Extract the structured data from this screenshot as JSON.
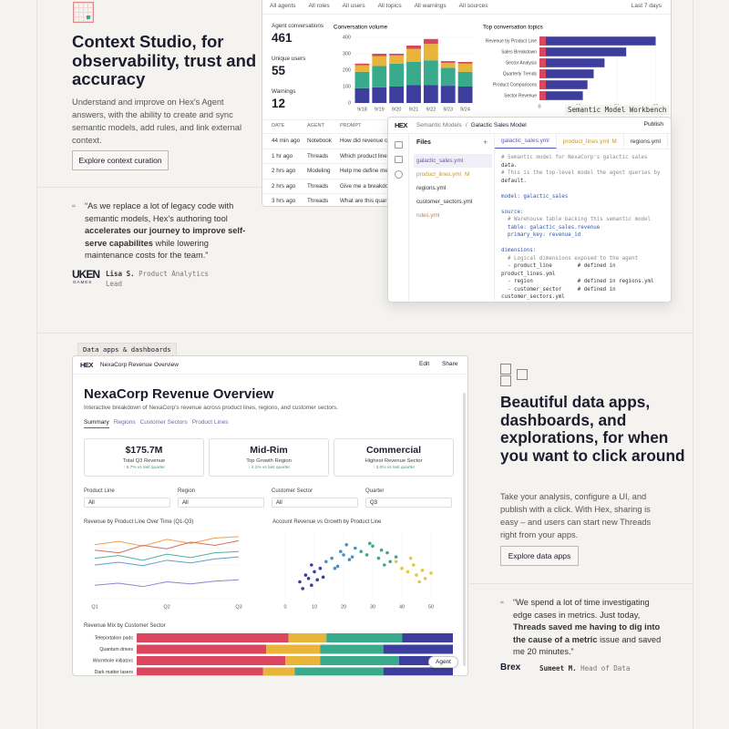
{
  "section1": {
    "title": "Context Studio, for observability, trust and accuracy",
    "body": "Understand and improve on Hex's Agent answers, with the ability to create and sync semantic models, add rules, and link external context.",
    "button": "Explore context curation",
    "quote_pre": "“As we replace a lot of legacy code with semantic models, Hex's authoring tool ",
    "quote_bold": "accelerates our journey to improve self-serve capabilites",
    "quote_post": " while lowering maintenance costs for the team.”",
    "logo": "UKEN",
    "logo_sub": "GAMES",
    "author": "Lisa S.",
    "role": "Product Analytics Lead"
  },
  "dashboard": {
    "filters": [
      "All agents",
      "All roles",
      "All users",
      "All topics",
      "All warnings",
      "All sources"
    ],
    "range": "Last 7 days",
    "stats": [
      {
        "label": "Agent conversations",
        "value": 461
      },
      {
        "label": "Unique users",
        "value": 55
      },
      {
        "label": "Warnings",
        "value": 12
      }
    ],
    "volume": {
      "type": "bar",
      "title": "Conversation volume",
      "categories": [
        "9/18",
        "9/19",
        "9/20",
        "9/21",
        "9/22",
        "9/23",
        "9/24"
      ],
      "series": [
        {
          "color": "#3d3d9e",
          "values": [
            90,
            95,
            100,
            110,
            110,
            105,
            100
          ]
        },
        {
          "color": "#3aaa8c",
          "values": [
            100,
            130,
            140,
            140,
            150,
            110,
            90
          ]
        },
        {
          "color": "#e8b53a",
          "values": [
            40,
            60,
            50,
            80,
            100,
            30,
            50
          ]
        },
        {
          "color": "#d9465e",
          "values": [
            10,
            15,
            10,
            20,
            30,
            10,
            10
          ]
        }
      ],
      "ylim": [
        0,
        400
      ],
      "yticks": [
        0,
        100,
        200,
        300,
        400
      ]
    },
    "topics": {
      "type": "bar",
      "title": "Top conversation topics",
      "categories": [
        "Revenue by Product Line",
        "Sales Breakdown",
        "Sector Analysis",
        "Quarterly Trends",
        "Product Comparisons",
        "Sector Revenue"
      ],
      "values": [
        75,
        56,
        42,
        35,
        31,
        28
      ],
      "color": "#3d3d9e",
      "accent": "#d9465e",
      "xlim": [
        0,
        80
      ],
      "xticks": [
        0,
        25,
        50,
        75
      ]
    },
    "table": {
      "columns": [
        "DATE",
        "AGENT",
        "PROMPT"
      ],
      "rows": [
        [
          "44 min ago",
          "Notebook",
          "How did revenue c"
        ],
        [
          "1 hr ago",
          "Threads",
          "Which product line"
        ],
        [
          "2 hrs ago",
          "Modeling",
          "Help me define me"
        ],
        [
          "2 hrs ago",
          "Threads",
          "Give me a breakdo"
        ],
        [
          "3 hrs ago",
          "Threads",
          "What are this quar"
        ]
      ]
    }
  },
  "workbench": {
    "label": "Semantic Model Workbench",
    "logo": "HEX",
    "breadcrumb": "Semantic Models",
    "separator": "/",
    "model": "Galactic Sales Model",
    "publish": "Publish",
    "files_title": "Files",
    "files": [
      {
        "name": "galactic_sales.yml"
      },
      {
        "name": "product_lines.yml",
        "flag": "M"
      },
      {
        "name": "regions.yml"
      },
      {
        "name": "customer_sectors.yml"
      },
      {
        "name": "rules.yml"
      }
    ],
    "tabs": [
      {
        "name": "galactic_sales.yml"
      },
      {
        "name": "product_lines.yml",
        "flag": "M"
      },
      {
        "name": "regions.yml"
      }
    ],
    "code": [
      [
        "# Semantic model for NexaCorp's galactic sales",
        "data.",
        "# This is the top-level model the agent queries by",
        "default."
      ],
      [
        "model: galactic_sales"
      ],
      [
        "source:",
        "  # Warehouse table backing this semantic model",
        "  table: galactic_sales.revenue",
        "  primary_key: revenue_id"
      ],
      [
        "dimensions:",
        "  # Logical dimensions exposed to the agent",
        "  - product_line        # defined in",
        "product_lines.yml",
        "  - region              # defined in regions.yml",
        "  - customer_sector     # defined in",
        "customer_sectors.yml"
      ]
    ]
  },
  "section2": {
    "tag": "Data apps & dashboards",
    "title": "Beautiful data apps, dashboards, and explorations, for when you want to click around",
    "body": "Take your analysis, configure a UI, and publish with a click. With Hex, sharing is easy – and users can start new Threads right from your apps.",
    "button": "Explore data apps",
    "quote_pre": "“We spend a lot of time investigating edge cases in metrics. Just today, ",
    "quote_bold": "Threads saved me having to dig into the cause of a metric",
    "quote_post": " issue and saved me 20 minutes.”",
    "logo": "Brex",
    "author": "Sumeet M.",
    "role": "Head of Data"
  },
  "app": {
    "logo": "HEX",
    "name": "NexaCorp Revenue Overview",
    "edit": "Edit",
    "share": "Share",
    "title": "NexaCorp Revenue Overview",
    "subtitle": "Interactive breakdown of NexaCorp's revenue across product lines, regions, and customer sectors.",
    "tabs": [
      "Summary",
      "Regions",
      "Customer Sectors",
      "Product Lines"
    ],
    "kpis": [
      {
        "value": "$175.7M",
        "label": "Total Q3 Revenue",
        "change": "↑ 5.7% vs last quarter"
      },
      {
        "value": "Mid-Rim",
        "label": "Top Growth Region",
        "change": "↑ 4.1% vs last quarter"
      },
      {
        "value": "Commercial",
        "label": "Highest Revenue Sector",
        "change": "↑ 3.0% vs last quarter"
      }
    ],
    "filters": [
      {
        "label": "Product Line",
        "value": "All"
      },
      {
        "label": "Region",
        "value": "All"
      },
      {
        "label": "Customer Sector",
        "value": "All"
      },
      {
        "label": "Quarter",
        "value": "Q3"
      }
    ],
    "line_chart": {
      "type": "line",
      "title": "Revenue by Product Line Over Time (Q1-Q3)",
      "categories": [
        "Q1",
        null,
        null,
        "Q2",
        null,
        null,
        "Q3"
      ],
      "ylim": [
        0,
        100
      ],
      "series": [
        {
          "color": "#f0a04b",
          "values": [
            80,
            85,
            78,
            88,
            82,
            90,
            92
          ]
        },
        {
          "color": "#e06a5a",
          "values": [
            72,
            68,
            79,
            74,
            84,
            79,
            86
          ]
        },
        {
          "color": "#4fb0a0",
          "values": [
            60,
            64,
            57,
            66,
            61,
            68,
            70
          ]
        },
        {
          "color": "#5aa0d0",
          "values": [
            50,
            54,
            49,
            57,
            53,
            59,
            62
          ]
        },
        {
          "color": "#9b7fd0",
          "values": [
            20,
            23,
            18,
            25,
            22,
            26,
            28
          ]
        }
      ]
    },
    "scatter": {
      "type": "scatter",
      "title": "Account Revenue vs Growth by Product Line",
      "xlim": [
        0,
        55
      ],
      "xticks": [
        0,
        10,
        20,
        30,
        40,
        50
      ],
      "ylim": [
        0,
        100
      ],
      "series": [
        {
          "color": "#3d3d9e",
          "x": [
            5,
            7,
            8,
            9,
            10,
            11,
            12,
            13,
            6,
            9
          ],
          "y": [
            25,
            35,
            30,
            20,
            40,
            28,
            45,
            32,
            15,
            50
          ]
        },
        {
          "color": "#4a90c8",
          "x": [
            14,
            16,
            18,
            19,
            20,
            22,
            24,
            17,
            21,
            23
          ],
          "y": [
            55,
            60,
            48,
            70,
            65,
            58,
            75,
            45,
            80,
            62
          ]
        },
        {
          "color": "#3aaa8c",
          "x": [
            26,
            28,
            30,
            32,
            33,
            35,
            36,
            29,
            34,
            38
          ],
          "y": [
            70,
            65,
            78,
            60,
            72,
            68,
            55,
            82,
            50,
            62
          ]
        },
        {
          "color": "#e8c53a",
          "x": [
            38,
            40,
            42,
            44,
            45,
            47,
            48,
            43,
            46,
            50
          ],
          "y": [
            55,
            45,
            40,
            50,
            35,
            42,
            30,
            60,
            25,
            38
          ]
        }
      ]
    },
    "mix": {
      "type": "bar",
      "title": "Revenue Mix by Customer Sector",
      "categories": [
        "Teleportation pads",
        "Quantum drives",
        "Wormhole initiators",
        "Dark matter lasers"
      ],
      "xlim": [
        0,
        100
      ],
      "series": [
        {
          "color": "#d9465e",
          "values": [
            48,
            41,
            47,
            40
          ]
        },
        {
          "color": "#e8b53a",
          "values": [
            12,
            17,
            11,
            10
          ]
        },
        {
          "color": "#3aaa8c",
          "values": [
            24,
            20,
            25,
            28
          ]
        },
        {
          "color": "#3d3d9e",
          "values": [
            16,
            22,
            17,
            22
          ]
        }
      ]
    },
    "agent": "Agent"
  }
}
